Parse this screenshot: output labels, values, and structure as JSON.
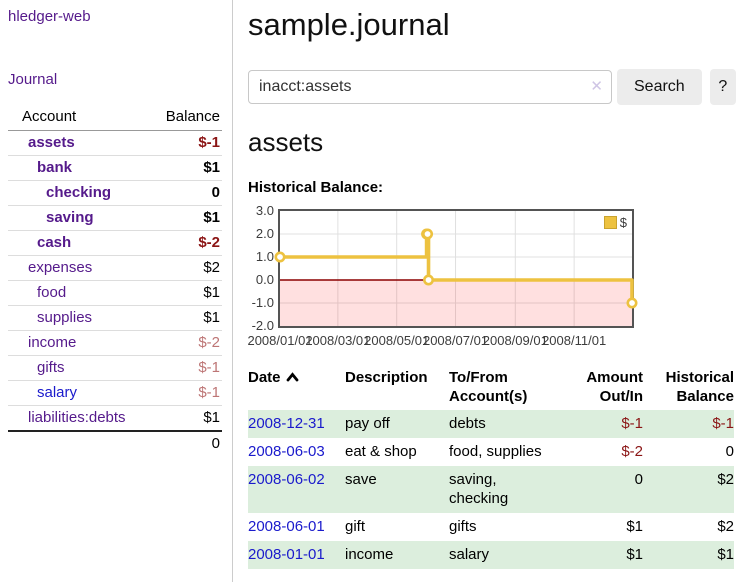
{
  "app": {
    "brand": "hledger-web"
  },
  "colors": {
    "accent_purple": "#551a8b",
    "link_blue": "#1a1acc",
    "negative": "#8b1515",
    "negative_muted": "#bd7575",
    "row_stripe_green": "#dceedd",
    "chart_series_yellow": "#edc240",
    "chart_negative_region": "rgba(255,0,0,0.12)",
    "chart_zero_line": "#8b0000"
  },
  "sidebar": {
    "journal_link": "Journal",
    "accounts": {
      "col_account": "Account",
      "col_balance": "Balance",
      "rows": [
        {
          "name": "assets",
          "balance": "$-1",
          "depth": 1,
          "selected": true
        },
        {
          "name": "bank",
          "balance": "$1",
          "depth": 2,
          "selected": true
        },
        {
          "name": "checking",
          "balance": "0",
          "depth": 3,
          "selected": true
        },
        {
          "name": "saving",
          "balance": "$1",
          "depth": 3,
          "selected": true
        },
        {
          "name": "cash",
          "balance": "$-2",
          "depth": 2,
          "selected": true
        },
        {
          "name": "expenses",
          "balance": "$2",
          "depth": 1,
          "selected": false
        },
        {
          "name": "food",
          "balance": "$1",
          "depth": 2,
          "selected": false
        },
        {
          "name": "supplies",
          "balance": "$1",
          "depth": 2,
          "selected": false
        },
        {
          "name": "income",
          "balance": "$-2",
          "depth": 1,
          "selected": false
        },
        {
          "name": "gifts",
          "balance": "$-1",
          "depth": 2,
          "selected": false
        },
        {
          "name": "salary",
          "balance": "$-1",
          "depth": 2,
          "selected": false
        },
        {
          "name": "liabilities:debts",
          "balance": "$1",
          "depth": 1,
          "selected": false
        }
      ],
      "total": "0"
    }
  },
  "header": {
    "title": "sample.journal"
  },
  "search": {
    "value": "inacct:assets",
    "clear_icon": "✕",
    "button_label": "Search",
    "help_label": "?"
  },
  "register": {
    "heading": "assets",
    "chart_title": "Historical Balance:",
    "sort_icon": "chevron-up"
  },
  "chart_data": {
    "type": "line",
    "style": "step",
    "title": "Historical Balance",
    "series": [
      {
        "name": "$",
        "color": "#edc240",
        "points": [
          [
            "2008-01-01",
            1.0
          ],
          [
            "2008-06-01",
            2.0
          ],
          [
            "2008-06-02",
            2.0
          ],
          [
            "2008-06-03",
            0.0
          ],
          [
            "2008-12-31",
            -1.0
          ]
        ]
      }
    ],
    "xlim": [
      "2008-01-01",
      "2008-12-31"
    ],
    "ylim": [
      -2.0,
      3.0
    ],
    "yticks": [
      {
        "value": 3,
        "label": "3.0"
      },
      {
        "value": 2,
        "label": "2.0"
      },
      {
        "value": 1,
        "label": "1.0"
      },
      {
        "value": 0,
        "label": "0.0"
      },
      {
        "value": -1,
        "label": "-1.0"
      },
      {
        "value": -2,
        "label": "-2.0"
      }
    ],
    "xticks": [
      {
        "value": "2008-01-01",
        "label": "2008/01/01"
      },
      {
        "value": "2008-03-01",
        "label": "2008/03/01"
      },
      {
        "value": "2008-05-01",
        "label": "2008/05/01"
      },
      {
        "value": "2008-07-01",
        "label": "2008/07/01"
      },
      {
        "value": "2008-09-01",
        "label": "2008/09/01"
      },
      {
        "value": "2008-11-01",
        "label": "2008/11/01"
      }
    ],
    "grid": true,
    "legend": {
      "position": "top-right",
      "entries": [
        {
          "label": "$",
          "color": "#edc240"
        }
      ]
    },
    "negative_region": {
      "from": 0,
      "to": -2,
      "color": "rgba(255,0,0,0.12)"
    },
    "zero_line_color": "#8b0000"
  },
  "transactions": {
    "headers": {
      "date": "Date",
      "description": "Description",
      "account": "To/From Account(s)",
      "amount": "Amount Out/In",
      "balance": "Historical Balance"
    },
    "rows": [
      {
        "date": "2008-12-31",
        "description": "pay off",
        "accounts": "debts",
        "amount": "$-1",
        "balance": "$-1"
      },
      {
        "date": "2008-06-03",
        "description": "eat & shop",
        "accounts": "food, supplies",
        "amount": "$-2",
        "balance": "0"
      },
      {
        "date": "2008-06-02",
        "description": "save",
        "accounts": "saving, checking",
        "amount": "0",
        "balance": "$2"
      },
      {
        "date": "2008-06-01",
        "description": "gift",
        "accounts": "gifts",
        "amount": "$1",
        "balance": "$2"
      },
      {
        "date": "2008-01-01",
        "description": "income",
        "accounts": "salary",
        "amount": "$1",
        "balance": "$1"
      }
    ]
  }
}
